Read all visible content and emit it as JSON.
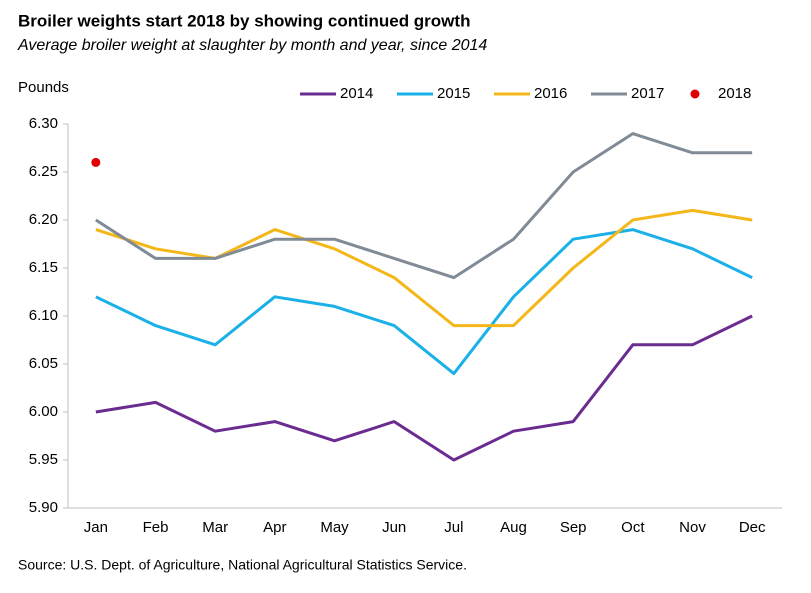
{
  "chart_data": {
    "type": "line",
    "title": "Broiler weights start 2018 by showing continued growth",
    "subtitle": "Average broiler weight at slaughter by month and year, since 2014",
    "y_label": "Pounds",
    "source": "Source: U.S. Dept. of Agriculture, National Agricultural Statistics Service.",
    "categories": [
      "Jan",
      "Feb",
      "Mar",
      "Apr",
      "May",
      "Jun",
      "Jul",
      "Aug",
      "Sep",
      "Oct",
      "Nov",
      "Dec"
    ],
    "series": [
      {
        "name": "2014",
        "color": "#6b2c91",
        "values": [
          6.0,
          6.01,
          5.98,
          5.99,
          5.97,
          5.99,
          5.95,
          5.98,
          5.99,
          6.07,
          6.07,
          6.1
        ]
      },
      {
        "name": "2015",
        "color": "#1ab0e8",
        "values": [
          6.12,
          6.09,
          6.07,
          6.12,
          6.11,
          6.09,
          6.04,
          6.12,
          6.18,
          6.19,
          6.17,
          6.14
        ]
      },
      {
        "name": "2016",
        "color": "#f4b719",
        "values": [
          6.19,
          6.17,
          6.16,
          6.19,
          6.17,
          6.14,
          6.09,
          6.09,
          6.15,
          6.2,
          6.21,
          6.2
        ]
      },
      {
        "name": "2017",
        "color": "#808b96",
        "values": [
          6.2,
          6.16,
          6.16,
          6.18,
          6.18,
          6.16,
          6.14,
          6.18,
          6.25,
          6.29,
          6.27,
          6.27
        ]
      },
      {
        "name": "2018",
        "color": "#e00000",
        "style": "dot",
        "values": [
          6.26,
          null,
          null,
          null,
          null,
          null,
          null,
          null,
          null,
          null,
          null,
          null
        ]
      }
    ],
    "ylim": [
      5.9,
      6.3
    ],
    "yticks": [
      {
        "value": 5.9,
        "label": "5.90"
      },
      5.95,
      {
        "value": 6.0,
        "label": "6.00"
      },
      6.05,
      {
        "value": 6.1,
        "label": "6.10"
      },
      6.15,
      {
        "value": 6.2,
        "label": "6.20"
      },
      6.25,
      {
        "value": 6.3,
        "label": "6.30"
      }
    ],
    "grid": false,
    "legend": "top"
  }
}
